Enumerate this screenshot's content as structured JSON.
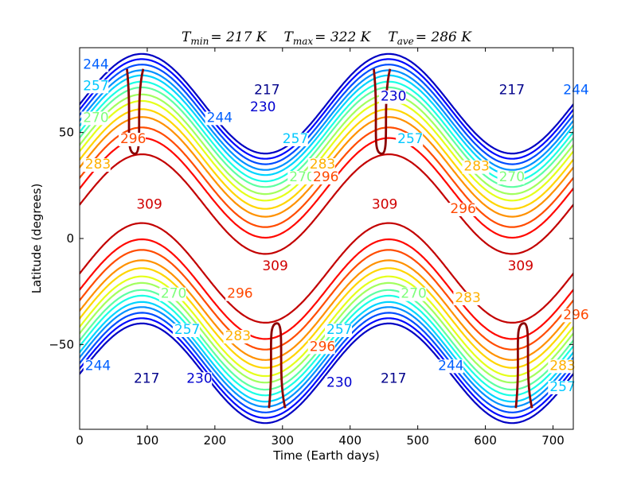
{
  "chart_data": {
    "type": "contour",
    "title_parts": [
      {
        "sym": "T",
        "sub": "min",
        "rest": "= 217 K"
      },
      {
        "sym": "T",
        "sub": "max",
        "rest": "= 322 K"
      },
      {
        "sym": "T",
        "sub": "ave",
        "rest": "= 286 K"
      }
    ],
    "xlabel": "Time (Earth days)",
    "ylabel": "Latitude (degrees)",
    "xlim": [
      0,
      730
    ],
    "ylim": [
      -90,
      90
    ],
    "xticks": [
      0,
      100,
      200,
      300,
      400,
      500,
      600,
      700
    ],
    "yticks": [
      -50,
      0,
      50
    ],
    "ytick_labels": [
      "−50",
      "0",
      "50"
    ],
    "levels": [
      217,
      223,
      230,
      237,
      244,
      250,
      257,
      263,
      270,
      276,
      283,
      289,
      296,
      302,
      309,
      315
    ],
    "period_days": 365,
    "peak_day": 92,
    "contour_labels": [
      {
        "text": "217",
        "x": 258,
        "y": 68,
        "color": "#00008b"
      },
      {
        "text": "230",
        "x": 252,
        "y": 60,
        "color": "#0000d0"
      },
      {
        "text": "244",
        "x": 188,
        "y": 55,
        "color": "#0060ff"
      },
      {
        "text": "257",
        "x": 300,
        "y": 45,
        "color": "#00c8ff"
      },
      {
        "text": "270",
        "x": 310,
        "y": 27,
        "color": "#7dff7a"
      },
      {
        "text": "283",
        "x": 340,
        "y": 33,
        "color": "#ffb000"
      },
      {
        "text": "296",
        "x": 345,
        "y": 27,
        "color": "#ff4800"
      },
      {
        "text": "309",
        "x": 84,
        "y": 14,
        "color": "#d00000"
      },
      {
        "text": "217",
        "x": 620,
        "y": 68,
        "color": "#00008b"
      },
      {
        "text": "230",
        "x": 445,
        "y": 65,
        "color": "#0000d0"
      },
      {
        "text": "257",
        "x": 470,
        "y": 45,
        "color": "#00c8ff"
      },
      {
        "text": "283",
        "x": 568,
        "y": 32,
        "color": "#ffb000"
      },
      {
        "text": "270",
        "x": 620,
        "y": 27,
        "color": "#7dff7a"
      },
      {
        "text": "296",
        "x": 548,
        "y": 12,
        "color": "#ff4800"
      },
      {
        "text": "309",
        "x": 432,
        "y": 14,
        "color": "#d00000"
      },
      {
        "text": "244",
        "x": 715,
        "y": 68,
        "color": "#0060ff"
      },
      {
        "text": "270",
        "x": 5,
        "y": 55,
        "color": "#7dff7a"
      },
      {
        "text": "244",
        "x": 5,
        "y": 80,
        "color": "#0060ff"
      },
      {
        "text": "257",
        "x": 5,
        "y": 70,
        "color": "#00c8ff"
      },
      {
        "text": "296",
        "x": 60,
        "y": 45,
        "color": "#ff4800"
      },
      {
        "text": "283",
        "x": 8,
        "y": 33,
        "color": "#ffb000"
      },
      {
        "text": "217",
        "x": 80,
        "y": -68,
        "color": "#00008b"
      },
      {
        "text": "230",
        "x": 158,
        "y": -68,
        "color": "#0000d0"
      },
      {
        "text": "257",
        "x": 140,
        "y": -45,
        "color": "#00c8ff"
      },
      {
        "text": "283",
        "x": 215,
        "y": -48,
        "color": "#ffb000"
      },
      {
        "text": "296",
        "x": 218,
        "y": -28,
        "color": "#ff4800"
      },
      {
        "text": "270",
        "x": 120,
        "y": -28,
        "color": "#7dff7a"
      },
      {
        "text": "244",
        "x": 8,
        "y": -62,
        "color": "#0060ff"
      },
      {
        "text": "309",
        "x": 270,
        "y": -15,
        "color": "#d00000"
      },
      {
        "text": "217",
        "x": 445,
        "y": -68,
        "color": "#00008b"
      },
      {
        "text": "230",
        "x": 365,
        "y": -70,
        "color": "#0000d0"
      },
      {
        "text": "257",
        "x": 365,
        "y": -45,
        "color": "#00c8ff"
      },
      {
        "text": "296",
        "x": 340,
        "y": -53,
        "color": "#ff4800"
      },
      {
        "text": "270",
        "x": 475,
        "y": -28,
        "color": "#7dff7a"
      },
      {
        "text": "283",
        "x": 555,
        "y": -30,
        "color": "#ffb000"
      },
      {
        "text": "244",
        "x": 530,
        "y": -62,
        "color": "#0060ff"
      },
      {
        "text": "309",
        "x": 633,
        "y": -15,
        "color": "#d00000"
      },
      {
        "text": "296",
        "x": 715,
        "y": -38,
        "color": "#ff4800"
      },
      {
        "text": "283",
        "x": 695,
        "y": -62,
        "color": "#ffb000"
      },
      {
        "text": "257",
        "x": 695,
        "y": -72,
        "color": "#00c8ff"
      }
    ]
  }
}
